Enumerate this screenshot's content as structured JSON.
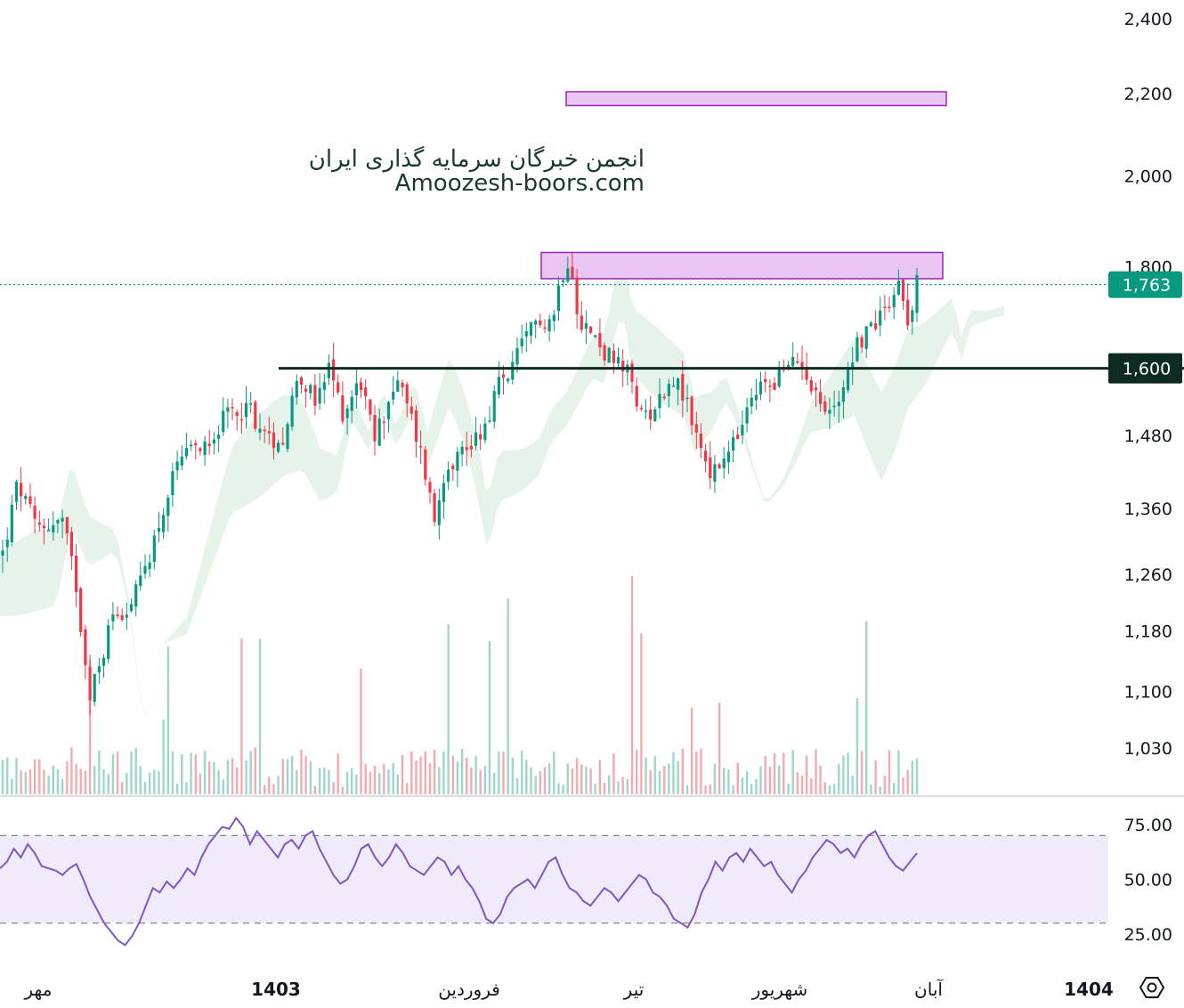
{
  "chart_data": {
    "type": "candlestick",
    "watermark": {
      "line1": "انجمن خبرگان سرمایه گذاری ایران",
      "line2": "Amoozesh-boors.com"
    },
    "price_axis": {
      "ticks": [
        "2,400",
        "2,200",
        "2,000",
        "1,800",
        "1,480",
        "1,360",
        "1,260",
        "1,180",
        "1,100",
        "1,030"
      ],
      "tick_values": [
        2400,
        2200,
        2000,
        1800,
        1480,
        1360,
        1260,
        1180,
        1100,
        1030
      ],
      "scale": "log"
    },
    "last_price": {
      "label": "1,763",
      "value": 1763,
      "color": "#089981"
    },
    "support_line": {
      "label": "1,600",
      "value": 1600,
      "color": "#0d2b22"
    },
    "zones": [
      {
        "low": 2170,
        "high": 2205,
        "color": "#e9c6f2"
      },
      {
        "low": 1775,
        "high": 1830,
        "color": "#e9c6f2"
      }
    ],
    "time_axis": {
      "labels": [
        "مهر",
        "1403",
        "فروردین",
        "تیر",
        "شهریور",
        "آبان",
        "1404"
      ],
      "bold": [
        false,
        true,
        false,
        false,
        false,
        false,
        true
      ]
    },
    "rsi": {
      "ticks": [
        "75.00",
        "50.00",
        "25.00"
      ],
      "tick_values": [
        75,
        50,
        25
      ],
      "upper": 70,
      "lower": 30,
      "values": [
        55,
        58,
        64,
        60,
        66,
        62,
        56,
        55,
        54,
        52,
        55,
        57,
        50,
        42,
        36,
        30,
        26,
        22,
        20,
        24,
        30,
        38,
        46,
        44,
        49,
        46,
        50,
        55,
        52,
        60,
        66,
        70,
        74,
        73,
        78,
        74,
        66,
        72,
        68,
        64,
        60,
        66,
        68,
        64,
        70,
        72,
        64,
        58,
        52,
        48,
        50,
        56,
        64,
        66,
        60,
        56,
        60,
        66,
        62,
        56,
        54,
        52,
        56,
        60,
        58,
        52,
        56,
        50,
        46,
        40,
        32,
        30,
        34,
        42,
        46,
        48,
        50,
        46,
        52,
        58,
        60,
        52,
        46,
        44,
        40,
        38,
        42,
        46,
        44,
        40,
        44,
        48,
        52,
        50,
        44,
        42,
        38,
        32,
        30,
        28,
        34,
        44,
        50,
        58,
        54,
        60,
        62,
        58,
        64,
        60,
        56,
        58,
        52,
        48,
        44,
        50,
        54,
        60,
        64,
        68,
        66,
        62,
        64,
        60,
        66,
        70,
        72,
        66,
        60,
        56,
        54,
        58,
        62
      ]
    },
    "candles_count": 200,
    "colors": {
      "up": "#089981",
      "down": "#f23645",
      "cloud_up": "#e3f2e8",
      "cloud_down": "#fde3e1",
      "rsi": "#7e57c2",
      "rsi_band": "#efebfb"
    }
  }
}
